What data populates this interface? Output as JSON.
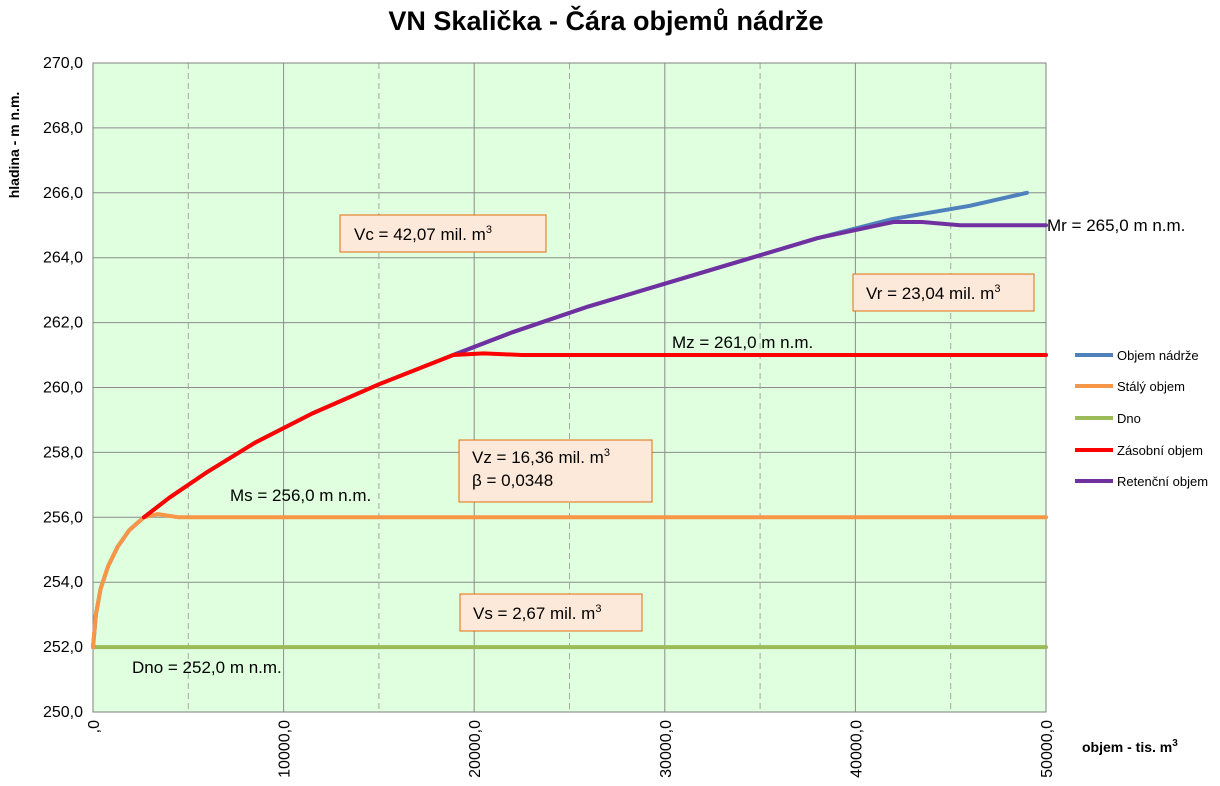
{
  "chart_data": {
    "type": "line",
    "title": "VN Skalička - Čára objemů nádrže",
    "xlabel": "objem - tis. m",
    "xlabel_sup": "3",
    "ylabel": "hladina - m n.m.",
    "xlim": [
      0,
      50000
    ],
    "ylim": [
      250,
      270
    ],
    "x_ticks": [
      ",0",
      "10000,0",
      "20000,0",
      "30000,0",
      "40000,0",
      "50000,0"
    ],
    "y_ticks": [
      "250,0",
      "252,0",
      "254,0",
      "256,0",
      "258,0",
      "260,0",
      "262,0",
      "264,0",
      "266,0",
      "268,0",
      "270,0"
    ],
    "grid": true,
    "plot_background": "#dfffdf",
    "legend_position": "right",
    "series": [
      {
        "name": "Objem nádrže",
        "color": "#4f81bd",
        "x": [
          0,
          150,
          400,
          800,
          1300,
          1900,
          2670,
          4000,
          6000,
          8500,
          11500,
          15000,
          18900,
          22000,
          26000,
          30000,
          34000,
          38000,
          42000,
          46000,
          49000
        ],
        "y": [
          252,
          253.0,
          253.8,
          254.5,
          255.1,
          255.6,
          256.0,
          256.6,
          257.4,
          258.3,
          259.2,
          260.1,
          261.0,
          261.7,
          262.5,
          263.2,
          263.9,
          264.6,
          265.2,
          265.6,
          266.0
        ]
      },
      {
        "name": "Stálý objem",
        "color": "#f79646",
        "x": [
          0,
          150,
          400,
          800,
          1300,
          1900,
          2670,
          3400,
          4500,
          6000,
          50000
        ],
        "y": [
          252,
          253.0,
          253.8,
          254.5,
          255.1,
          255.6,
          256.0,
          256.1,
          256.0,
          256.0,
          256.0
        ]
      },
      {
        "name": "Dno",
        "color": "#9bbb59",
        "x": [
          0,
          50000
        ],
        "y": [
          252,
          252
        ]
      },
      {
        "name": "Zásobní objem",
        "color": "#ff0000",
        "x": [
          2670,
          4000,
          6000,
          8500,
          11500,
          15000,
          18900,
          20500,
          22500,
          24000,
          50000
        ],
        "y": [
          256.0,
          256.6,
          257.4,
          258.3,
          259.2,
          260.1,
          261.0,
          261.05,
          261.0,
          261.0,
          261.0
        ]
      },
      {
        "name": "Retenční objem",
        "color": "#7030a0",
        "x": [
          18900,
          22000,
          26000,
          30000,
          34000,
          38000,
          42000,
          43500,
          45500,
          50000
        ],
        "y": [
          261.0,
          261.7,
          262.5,
          263.2,
          263.9,
          264.6,
          265.1,
          265.1,
          265.0,
          265.0
        ]
      }
    ],
    "annotations": [
      {
        "id": "vc",
        "text": "Vc = 42,07 mil. m",
        "sup": "3",
        "boxed": true
      },
      {
        "id": "vr",
        "text": "Vr = 23,04 mil. m",
        "sup": "3",
        "boxed": true
      },
      {
        "id": "vz",
        "text": "Vz = 16,36 mil. m",
        "sup": "3",
        "line2": "β = 0,0348",
        "boxed": true
      },
      {
        "id": "vs",
        "text": "Vs = 2,67 mil. m",
        "sup": "3",
        "boxed": true
      },
      {
        "id": "mr",
        "text": "Mr = 265,0 m n.m.",
        "boxed": false
      },
      {
        "id": "mz",
        "text": "Mz = 261,0 m n.m.",
        "boxed": false
      },
      {
        "id": "ms",
        "text": "Ms = 256,0 m n.m.",
        "boxed": false
      },
      {
        "id": "dno",
        "text": "Dno = 252,0 m n.m.",
        "boxed": false
      }
    ]
  }
}
